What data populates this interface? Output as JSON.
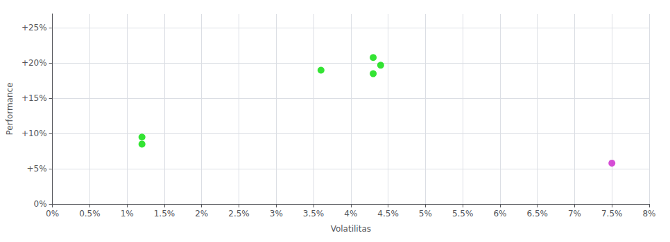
{
  "chart_data": {
    "type": "scatter",
    "x_label": "Volatilitas",
    "y_label": "Performance",
    "series": [
      {
        "color": "#00dd00",
        "x": [
          0.012,
          0.012,
          0.036,
          0.043,
          0.044,
          0.043
        ],
        "values": [
          0.095,
          0.085,
          0.19,
          0.208,
          0.197,
          0.185
        ]
      },
      {
        "color": "#cc22cc",
        "x": [
          0.075
        ],
        "values": [
          0.058
        ]
      }
    ],
    "xlim": [
      0.0,
      0.08
    ],
    "ylim": [
      0.0,
      0.27
    ],
    "xticks": [
      {
        "value": 0.0,
        "label": "0%"
      },
      {
        "value": 0.005,
        "label": "0.5%"
      },
      {
        "value": 0.01,
        "label": "1%"
      },
      {
        "value": 0.015,
        "label": "1.5%"
      },
      {
        "value": 0.02,
        "label": "2%"
      },
      {
        "value": 0.025,
        "label": "2.5%"
      },
      {
        "value": 0.03,
        "label": "3%"
      },
      {
        "value": 0.035,
        "label": "3.5%"
      },
      {
        "value": 0.04,
        "label": "4%"
      },
      {
        "value": 0.045,
        "label": "4.5%"
      },
      {
        "value": 0.05,
        "label": "5%"
      },
      {
        "value": 0.055,
        "label": "5.5%"
      },
      {
        "value": 0.06,
        "label": "6%"
      },
      {
        "value": 0.065,
        "label": "6.5%"
      },
      {
        "value": 0.07,
        "label": "7%"
      },
      {
        "value": 0.075,
        "label": "7.5%"
      },
      {
        "value": 0.08,
        "label": "8%"
      }
    ],
    "yticks": [
      {
        "value": 0.0,
        "label": "0%"
      },
      {
        "value": 0.05,
        "label": "+5%"
      },
      {
        "value": 0.1,
        "label": "+10%"
      },
      {
        "value": 0.15,
        "label": "+15%"
      },
      {
        "value": 0.2,
        "label": "+20%"
      },
      {
        "value": 0.25,
        "label": "+25%"
      }
    ],
    "grid": true
  }
}
